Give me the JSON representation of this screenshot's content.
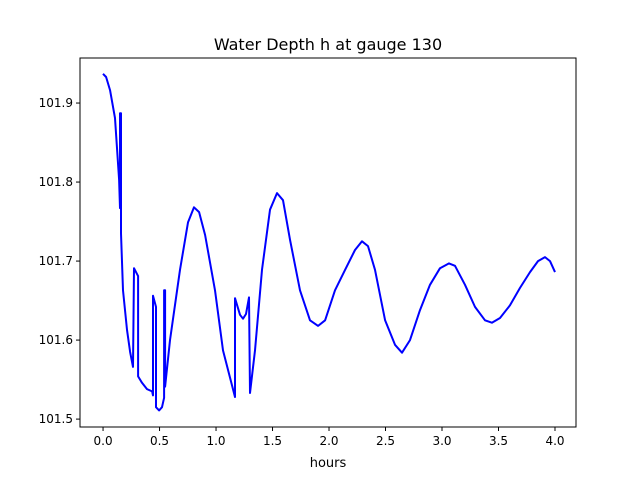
{
  "chart_data": {
    "type": "line",
    "title": "Water Depth h at gauge 130",
    "xlabel": "hours",
    "ylabel": "",
    "xlim": [
      -0.204,
      4.186
    ],
    "ylim": [
      101.49,
      101.957
    ],
    "xticks": [
      0.0,
      0.5,
      1.0,
      1.5,
      2.0,
      2.5,
      3.0,
      3.5,
      4.0
    ],
    "xtick_labels": [
      "0.0",
      "0.5",
      "1.0",
      "1.5",
      "2.0",
      "2.5",
      "3.0",
      "3.5",
      "4.0"
    ],
    "yticks": [
      101.5,
      101.6,
      101.7,
      101.8,
      101.9
    ],
    "ytick_labels": [
      "101.5",
      "101.6",
      "101.7",
      "101.8",
      "101.9"
    ],
    "grid": false,
    "series": [
      {
        "name": "h",
        "color": "#0000ff",
        "x": [
          0.0,
          0.027,
          0.062,
          0.106,
          0.142,
          0.15,
          0.15,
          0.159,
          0.159,
          0.177,
          0.212,
          0.239,
          0.265,
          0.274,
          0.31,
          0.31,
          0.345,
          0.389,
          0.434,
          0.442,
          0.442,
          0.469,
          0.469,
          0.496,
          0.522,
          0.54,
          0.54,
          0.549,
          0.549,
          0.593,
          0.681,
          0.752,
          0.805,
          0.85,
          0.903,
          0.991,
          1.062,
          1.168,
          1.168,
          1.212,
          1.239,
          1.265,
          1.292,
          1.301,
          1.345,
          1.407,
          1.478,
          1.54,
          1.593,
          1.655,
          1.743,
          1.832,
          1.903,
          1.965,
          2.053,
          2.142,
          2.23,
          2.292,
          2.345,
          2.407,
          2.496,
          2.584,
          2.646,
          2.717,
          2.805,
          2.894,
          2.982,
          3.062,
          3.115,
          3.204,
          3.292,
          3.381,
          3.442,
          3.513,
          3.602,
          3.69,
          3.779,
          3.85,
          3.912,
          3.956,
          4.0
        ],
        "y": [
          101.937,
          101.933,
          101.916,
          101.881,
          101.803,
          101.767,
          101.887,
          101.887,
          101.735,
          101.663,
          101.613,
          101.585,
          101.566,
          101.691,
          101.681,
          101.554,
          101.546,
          101.538,
          101.535,
          101.53,
          101.656,
          101.642,
          101.515,
          101.511,
          101.515,
          101.527,
          101.663,
          101.663,
          101.541,
          101.6,
          101.689,
          101.749,
          101.768,
          101.762,
          101.733,
          101.663,
          101.587,
          101.528,
          101.653,
          101.632,
          101.627,
          101.633,
          101.654,
          101.533,
          101.587,
          101.689,
          101.765,
          101.786,
          101.777,
          101.727,
          101.663,
          101.625,
          101.618,
          101.625,
          101.663,
          101.689,
          101.714,
          101.725,
          101.719,
          101.689,
          101.625,
          101.594,
          101.584,
          101.6,
          101.638,
          101.67,
          101.691,
          101.697,
          101.694,
          101.67,
          101.642,
          101.625,
          101.622,
          101.628,
          101.644,
          101.666,
          101.686,
          101.7,
          101.705,
          101.7,
          101.686
        ]
      }
    ]
  }
}
